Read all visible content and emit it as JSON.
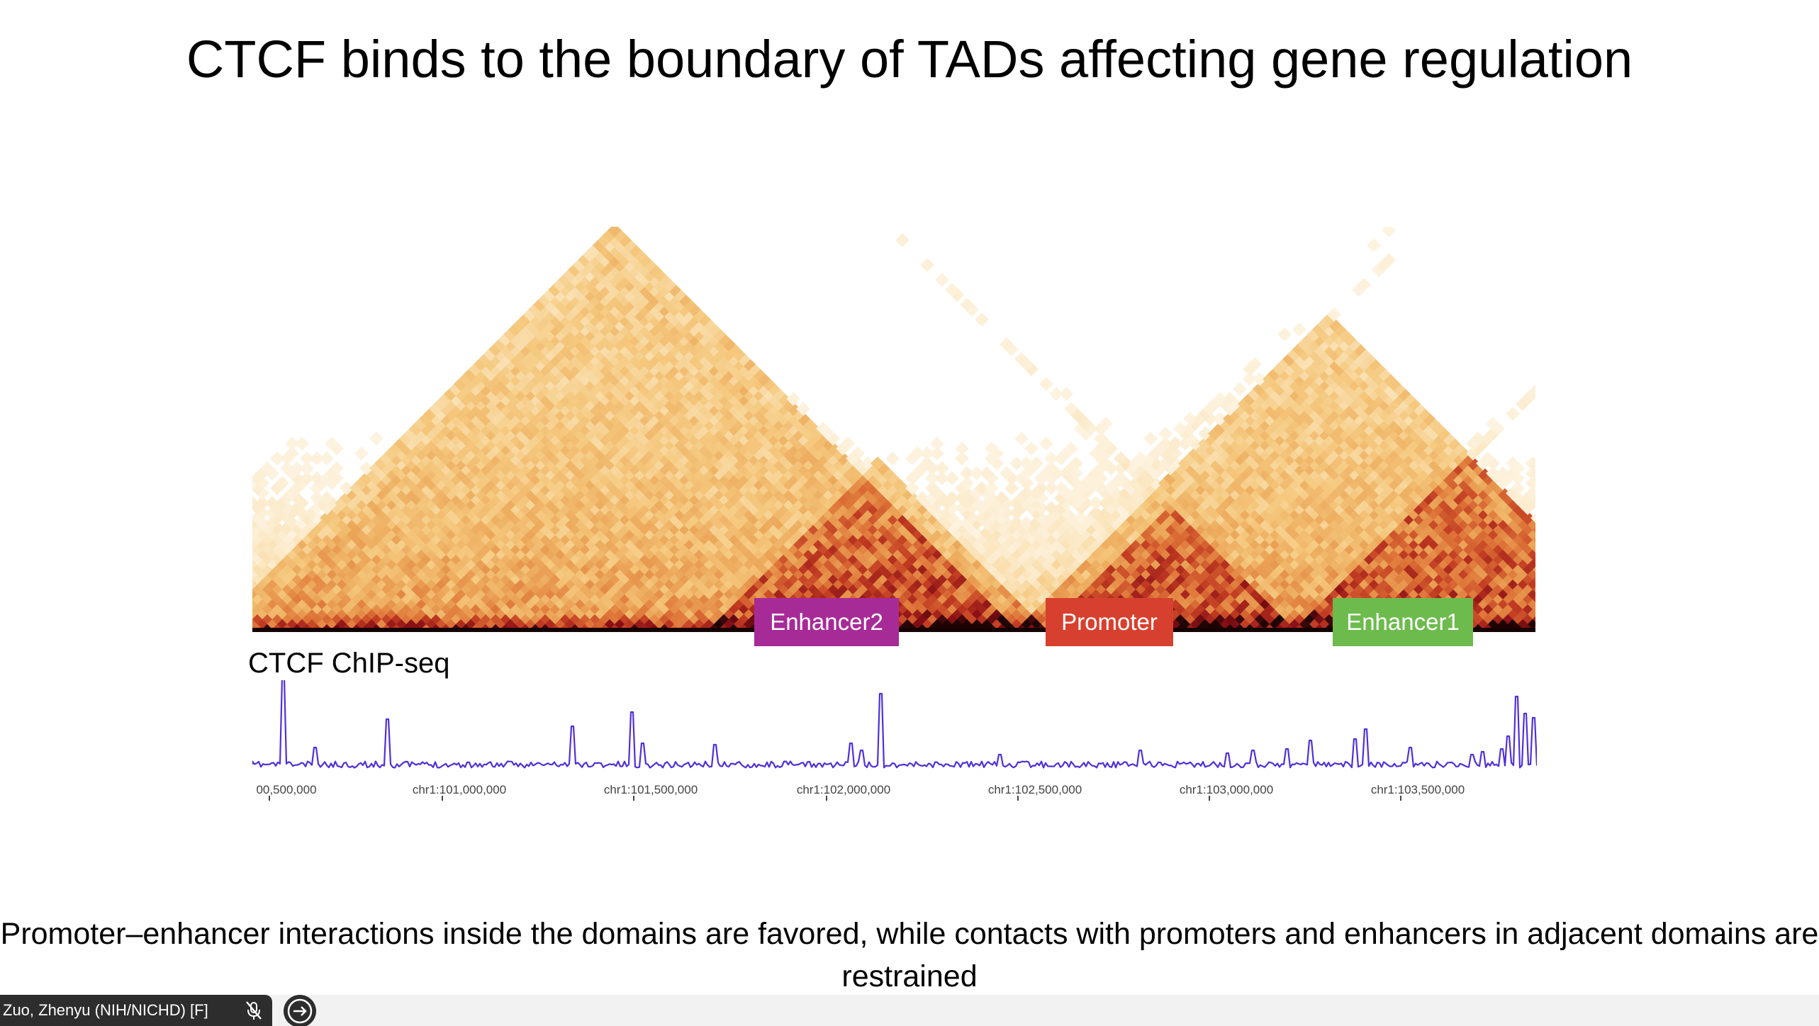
{
  "slide": {
    "title": "CTCF binds to the boundary of TADs affecting gene regulation",
    "caption": "Promoter–enhancer interactions inside the domains are favored, while contacts with promoters and enhancers in adjacent domains are restrained"
  },
  "labels": [
    {
      "text": "Enhancer2",
      "color": "#a72b97"
    },
    {
      "text": "Promoter",
      "color": "#d7402f"
    },
    {
      "text": "Enhancer1",
      "color": "#6dbb4d"
    }
  ],
  "track": {
    "label": "CTCF ChIP-seq",
    "line_color": "#5030d8",
    "ticks": [
      "00,500,000",
      "chr1:101,000,000",
      "chr1:101,500,000",
      "chr1:102,000,000",
      "chr1:102,500,000",
      "chr1:103,000,000",
      "chr1:103,500,000"
    ]
  },
  "heatmap": {
    "colors": [
      "#ffffff",
      "#fbe6bf",
      "#f5c97f",
      "#eca85a",
      "#de7438",
      "#c03a22",
      "#8a1016",
      "#200405"
    ]
  },
  "video_bar": {
    "participant_name": "Zuo, Zhenyu (NIH/NICHD) [F]",
    "mic_icon": "mic-muted-icon",
    "arrow_icon": "arrow-right-icon"
  }
}
